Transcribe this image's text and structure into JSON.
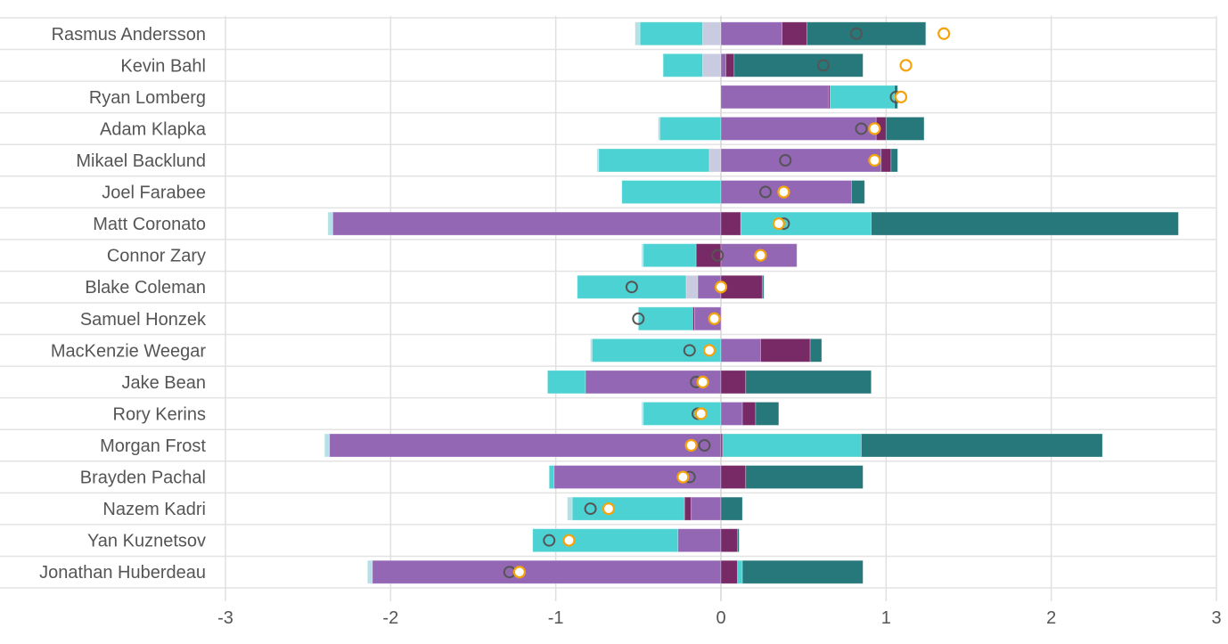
{
  "chart_data": {
    "type": "bar",
    "subtype": "diverging-stacked-horizontal",
    "title": "",
    "xlabel": "",
    "ylabel": "",
    "xlim": [
      -3,
      3
    ],
    "xticks": [
      -3,
      -2,
      -1,
      0,
      1,
      2,
      3
    ],
    "grid": true,
    "colors": {
      "lp": "#9467b5",
      "dp": "#772a65",
      "cy": "#4dd2d4",
      "te": "#26787b",
      "lv": "#c9cbe0",
      "pc": "#b5e0e6",
      "marker_gray": "#555555",
      "marker_orange": "#f5a30a"
    },
    "rows": [
      {
        "name": "Rasmus Andersson",
        "segments": [
          [
            "pc",
            -0.52,
            -0.49
          ],
          [
            "cy",
            -0.49,
            -0.11
          ],
          [
            "lv",
            -0.11,
            0
          ],
          [
            "lp",
            0,
            0.37
          ],
          [
            "dp",
            0.37,
            0.52
          ],
          [
            "te",
            0.52,
            1.24
          ]
        ],
        "gray": 0.82,
        "orange": 1.35
      },
      {
        "name": "Kevin Bahl",
        "segments": [
          [
            "cy",
            -0.35,
            -0.11
          ],
          [
            "lv",
            -0.11,
            0
          ],
          [
            "lp",
            0,
            0.03
          ],
          [
            "dp",
            0.03,
            0.08
          ],
          [
            "te",
            0.08,
            0.86
          ]
        ],
        "gray": 0.62,
        "orange": 1.12
      },
      {
        "name": "Ryan Lomberg",
        "segments": [
          [
            "lp",
            0,
            0.65
          ],
          [
            "dp",
            0.65,
            0.66
          ],
          [
            "cy",
            0.66,
            1.05
          ],
          [
            "te",
            1.05,
            1.07
          ]
        ],
        "gray": 1.06,
        "orange": 1.09
      },
      {
        "name": "Adam Klapka",
        "segments": [
          [
            "pc",
            -0.38,
            -0.37
          ],
          [
            "cy",
            -0.37,
            0
          ],
          [
            "lp",
            0,
            0.94
          ],
          [
            "dp",
            0.94,
            1.0
          ],
          [
            "te",
            1.0,
            1.23
          ]
        ],
        "gray": 0.85,
        "orange": 0.93
      },
      {
        "name": "Mikael Backlund",
        "segments": [
          [
            "pc",
            -0.75,
            -0.74
          ],
          [
            "cy",
            -0.74,
            -0.07
          ],
          [
            "lv",
            -0.07,
            0
          ],
          [
            "lp",
            0,
            0.97
          ],
          [
            "dp",
            0.97,
            1.03
          ],
          [
            "te",
            1.03,
            1.07
          ]
        ],
        "gray": 0.39,
        "orange": 0.93
      },
      {
        "name": "Joel Farabee",
        "segments": [
          [
            "cy",
            -0.6,
            0
          ],
          [
            "lp",
            0,
            0.79
          ],
          [
            "te",
            0.79,
            0.87
          ]
        ],
        "gray": 0.27,
        "orange": 0.38
      },
      {
        "name": "Matt Coronato",
        "segments": [
          [
            "pc",
            -2.38,
            -2.35
          ],
          [
            "lp",
            -2.35,
            0
          ],
          [
            "dp",
            0,
            0.12
          ],
          [
            "cy",
            0.12,
            0.91
          ],
          [
            "te",
            0.91,
            2.77
          ]
        ],
        "gray": 0.38,
        "orange": 0.35
      },
      {
        "name": "Connor Zary",
        "segments": [
          [
            "pc",
            -0.48,
            -0.47
          ],
          [
            "cy",
            -0.47,
            -0.15
          ],
          [
            "dp",
            -0.15,
            0
          ],
          [
            "lp",
            0,
            0.46
          ]
        ],
        "gray": -0.02,
        "orange": 0.24
      },
      {
        "name": "Blake Coleman",
        "segments": [
          [
            "cy",
            -0.87,
            -0.21
          ],
          [
            "lv",
            -0.21,
            -0.14
          ],
          [
            "lp",
            -0.14,
            0
          ],
          [
            "dp",
            0,
            0.25
          ],
          [
            "te",
            0.25,
            0.26
          ]
        ],
        "gray": -0.54,
        "orange": 0.0
      },
      {
        "name": "Samuel Honzek",
        "segments": [
          [
            "cy",
            -0.5,
            -0.17
          ],
          [
            "dp",
            -0.17,
            -0.16
          ],
          [
            "lp",
            -0.16,
            0
          ]
        ],
        "gray": -0.5,
        "orange": -0.04
      },
      {
        "name": "MacKenzie Weegar",
        "segments": [
          [
            "pc",
            -0.79,
            -0.78
          ],
          [
            "cy",
            -0.78,
            0
          ],
          [
            "lp",
            0,
            0.24
          ],
          [
            "dp",
            0.24,
            0.54
          ],
          [
            "te",
            0.54,
            0.61
          ]
        ],
        "gray": -0.19,
        "orange": -0.07
      },
      {
        "name": "Jake Bean",
        "segments": [
          [
            "cy",
            -1.05,
            -0.82
          ],
          [
            "lp",
            -0.82,
            0
          ],
          [
            "dp",
            0,
            0.15
          ],
          [
            "te",
            0.15,
            0.91
          ]
        ],
        "gray": -0.15,
        "orange": -0.11
      },
      {
        "name": "Rory Kerins",
        "segments": [
          [
            "pc",
            -0.48,
            -0.47
          ],
          [
            "cy",
            -0.47,
            0
          ],
          [
            "lp",
            0,
            0.13
          ],
          [
            "dp",
            0.13,
            0.21
          ],
          [
            "te",
            0.21,
            0.35
          ]
        ],
        "gray": -0.14,
        "orange": -0.12
      },
      {
        "name": "Morgan Frost",
        "segments": [
          [
            "pc",
            -2.4,
            -2.37
          ],
          [
            "lp",
            -2.37,
            0
          ],
          [
            "dp",
            0,
            0.01
          ],
          [
            "cy",
            0.01,
            0.85
          ],
          [
            "te",
            0.85,
            2.31
          ]
        ],
        "gray": -0.1,
        "orange": -0.18
      },
      {
        "name": "Brayden Pachal",
        "segments": [
          [
            "cy",
            -1.04,
            -1.01
          ],
          [
            "lp",
            -1.01,
            0
          ],
          [
            "dp",
            0,
            0.15
          ],
          [
            "te",
            0.15,
            0.86
          ]
        ],
        "gray": -0.19,
        "orange": -0.23
      },
      {
        "name": "Nazem Kadri",
        "segments": [
          [
            "pc",
            -0.93,
            -0.9
          ],
          [
            "cy",
            -0.9,
            -0.22
          ],
          [
            "dp",
            -0.22,
            -0.18
          ],
          [
            "lp",
            -0.18,
            0
          ],
          [
            "te",
            0,
            0.13
          ]
        ],
        "gray": -0.79,
        "orange": -0.68
      },
      {
        "name": "Yan Kuznetsov",
        "segments": [
          [
            "cy",
            -1.14,
            -0.26
          ],
          [
            "lp",
            -0.26,
            0
          ],
          [
            "dp",
            0,
            0.1
          ],
          [
            "te",
            0.1,
            0.11
          ]
        ],
        "gray": -1.04,
        "orange": -0.92
      },
      {
        "name": "Jonathan Huberdeau",
        "segments": [
          [
            "pc",
            -2.14,
            -2.11
          ],
          [
            "lp",
            -2.11,
            0
          ],
          [
            "dp",
            0,
            0.1
          ],
          [
            "cy",
            0.1,
            0.13
          ],
          [
            "te",
            0.13,
            0.86
          ]
        ],
        "gray": -1.28,
        "orange": -1.22
      }
    ]
  }
}
